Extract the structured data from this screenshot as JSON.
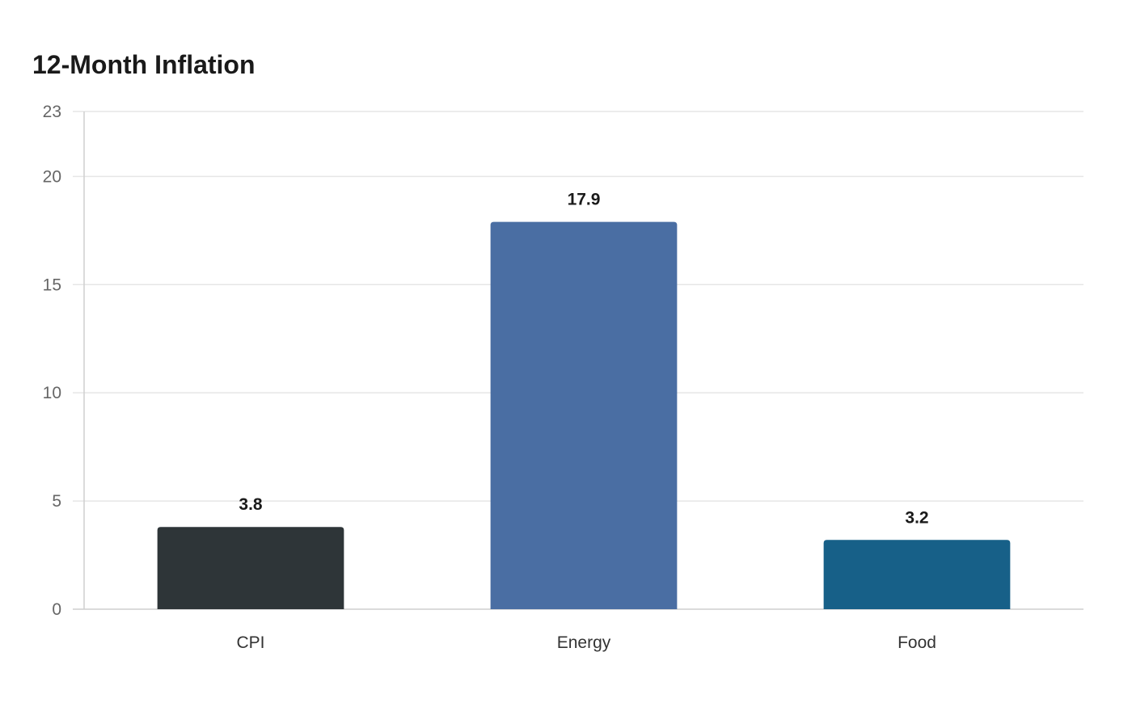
{
  "chart_data": {
    "type": "bar",
    "title": "12-Month Inflation",
    "xlabel": "",
    "ylabel": "",
    "categories": [
      "CPI",
      "Energy",
      "Food"
    ],
    "values": [
      3.8,
      17.9,
      3.2
    ],
    "colors": [
      "#2e3538",
      "#4a6ea3",
      "#176088"
    ],
    "ylim": [
      0,
      23
    ],
    "yticks": [
      0,
      5,
      10,
      15,
      20,
      23
    ],
    "grid": true,
    "legend": "none",
    "data_labels": true
  }
}
